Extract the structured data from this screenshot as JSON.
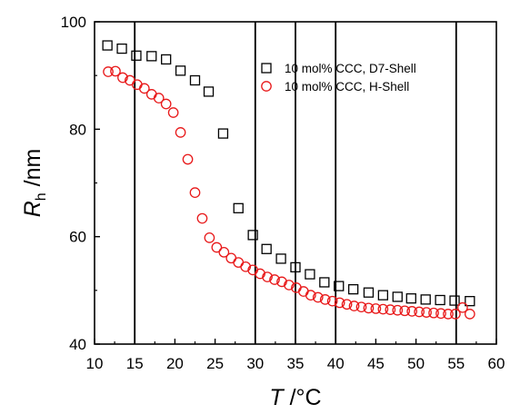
{
  "chart_data": {
    "type": "scatter",
    "xlabel": {
      "var": "T",
      "unit": " /°C"
    },
    "ylabel": {
      "var": "R",
      "sub": "h",
      "unit": " /nm"
    },
    "xlim": [
      10,
      60
    ],
    "ylim": [
      40,
      100
    ],
    "xticks": [
      10,
      15,
      20,
      25,
      30,
      35,
      40,
      45,
      50,
      55,
      60
    ],
    "yticks": [
      40,
      60,
      80,
      100
    ],
    "vertical_lines": [
      15,
      30,
      35,
      40,
      55
    ],
    "legend_position": "top-right",
    "series": [
      {
        "name": "10 mol% CCC, D7-Shell",
        "marker": "square",
        "color": "#000000",
        "x": [
          11.6,
          13.4,
          15.2,
          17.1,
          18.9,
          20.7,
          22.5,
          24.2,
          26.0,
          27.9,
          29.7,
          31.4,
          33.2,
          35.0,
          36.8,
          38.6,
          40.4,
          42.2,
          44.1,
          45.9,
          47.7,
          49.4,
          51.2,
          53.0,
          54.8,
          56.7
        ],
        "y": [
          95.6,
          95.0,
          93.7,
          93.6,
          93.0,
          90.9,
          89.1,
          87.0,
          79.2,
          65.3,
          60.3,
          57.7,
          55.9,
          54.3,
          53.0,
          51.5,
          50.8,
          50.2,
          49.6,
          49.1,
          48.8,
          48.5,
          48.3,
          48.2,
          48.1,
          48.0
        ]
      },
      {
        "name": "10 mol% CCC, H-Shell",
        "marker": "circle",
        "color": "#e8191a",
        "x": [
          11.7,
          12.6,
          13.5,
          14.4,
          15.3,
          16.2,
          17.1,
          18.0,
          18.9,
          19.8,
          20.7,
          21.6,
          22.5,
          23.4,
          24.3,
          25.2,
          26.1,
          27.0,
          27.9,
          28.8,
          29.7,
          30.6,
          31.5,
          32.4,
          33.3,
          34.2,
          35.1,
          36.0,
          36.9,
          37.8,
          38.7,
          39.6,
          40.5,
          41.4,
          42.3,
          43.2,
          44.1,
          45.0,
          45.9,
          46.8,
          47.7,
          48.6,
          49.5,
          50.4,
          51.3,
          52.2,
          53.1,
          54.0,
          54.9,
          55.8,
          56.7
        ],
        "y": [
          90.7,
          90.8,
          89.6,
          89.1,
          88.3,
          87.6,
          86.5,
          85.8,
          84.7,
          83.1,
          79.4,
          74.4,
          68.2,
          63.4,
          59.8,
          58.0,
          57.1,
          56.0,
          55.2,
          54.4,
          53.8,
          53.1,
          52.5,
          52.0,
          51.6,
          51.0,
          50.5,
          49.8,
          49.1,
          48.7,
          48.3,
          48.0,
          47.7,
          47.4,
          47.1,
          46.9,
          46.7,
          46.6,
          46.5,
          46.4,
          46.3,
          46.2,
          46.1,
          46.0,
          45.9,
          45.8,
          45.7,
          45.6,
          45.6,
          46.8,
          45.6
        ]
      }
    ]
  }
}
